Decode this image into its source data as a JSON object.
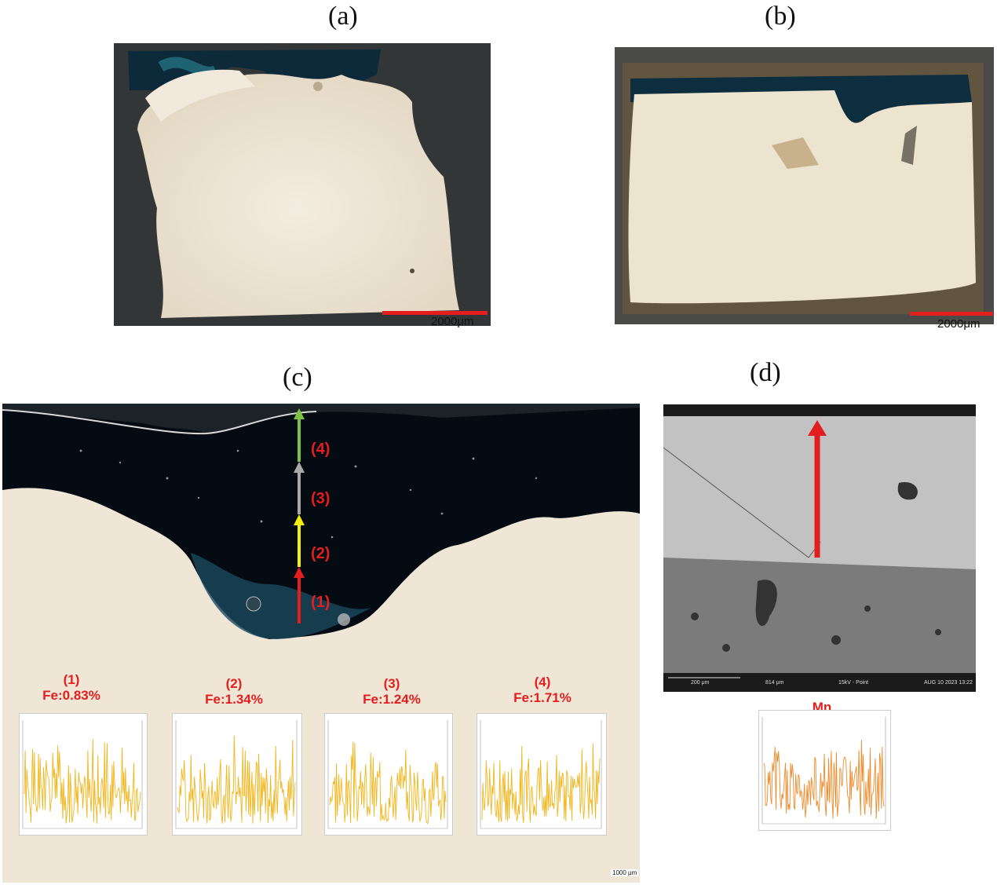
{
  "panels": {
    "a": {
      "letter": "(a)",
      "scale": "2000μm"
    },
    "b": {
      "letter": "(b)",
      "scale": "2000μm"
    },
    "c": {
      "letter": "(c)",
      "scale": "1000 μm",
      "segments": [
        "(1)",
        "(2)",
        "(3)",
        "(4)"
      ],
      "spectra": [
        {
          "label": "(1)",
          "value": "Fe:0.83%"
        },
        {
          "label": "(2)",
          "value": "Fe:1.34%"
        },
        {
          "label": "(3)",
          "value": "Fe:1.24%"
        },
        {
          "label": "(4)",
          "value": "Fe:1.71%"
        }
      ]
    },
    "d": {
      "letter": "(d)",
      "element": "Mn",
      "sem": {
        "scale": "200 μm",
        "fov": "814 μm",
        "mode": "15kV - Point",
        "date": "AUG 10 2023 13:22"
      }
    }
  },
  "colors": {
    "scale_bar": "#e41e1e",
    "fe_line": "#f2b51b",
    "mn_line": "#f08a2a",
    "arrow_red": "#e41e1e",
    "arrow_yellow": "#f5f00a",
    "arrow_gray": "#a9a9a9",
    "arrow_green": "#7cc243"
  }
}
